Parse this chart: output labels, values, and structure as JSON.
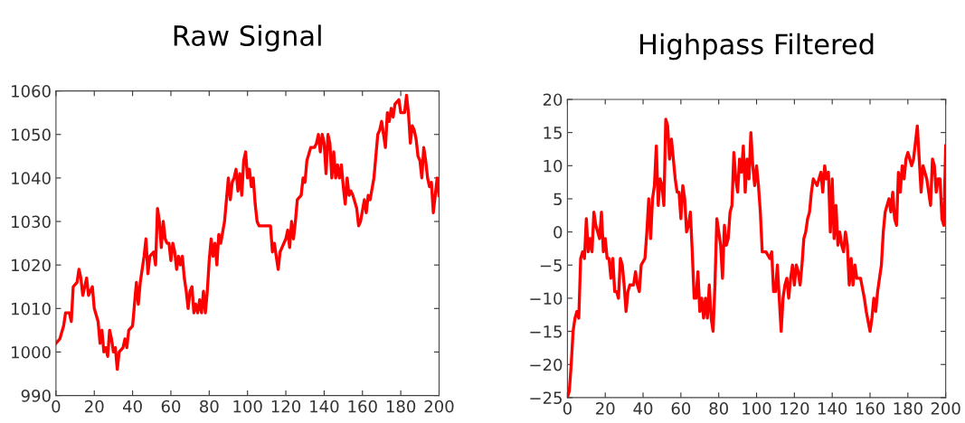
{
  "chart_data": [
    {
      "type": "line",
      "title": "Raw Signal",
      "xlim": [
        0,
        200
      ],
      "xticks": [
        0,
        20,
        40,
        60,
        80,
        100,
        120,
        140,
        160,
        180,
        200
      ],
      "ylim": [
        990,
        1060
      ],
      "yticks": [
        990,
        1000,
        1010,
        1020,
        1030,
        1040,
        1050,
        1060
      ],
      "grid": false,
      "series": [
        {
          "color": "#ff0000",
          "x": [
            0,
            2,
            4,
            5,
            7,
            8,
            9,
            11,
            12,
            13,
            14,
            16,
            17,
            19,
            20,
            22,
            23,
            24,
            25,
            26,
            27,
            28,
            29,
            30,
            31,
            32,
            33,
            35,
            36,
            37,
            38,
            40,
            41,
            42,
            43,
            44,
            46,
            47,
            48,
            49,
            51,
            52,
            53,
            54,
            55,
            56,
            57,
            58,
            59,
            60,
            61,
            62,
            63,
            64,
            65,
            66,
            67,
            68,
            69,
            70,
            71,
            72,
            73,
            74,
            75,
            76,
            77,
            78,
            79,
            80,
            81,
            82,
            83,
            84,
            85,
            86,
            88,
            90,
            91,
            92,
            93,
            94,
            95,
            96,
            97,
            98,
            99,
            100,
            101,
            102,
            103,
            104,
            105,
            106,
            108,
            110,
            112,
            113,
            114,
            115,
            116,
            117,
            118,
            120,
            121,
            122,
            123,
            124,
            125,
            126,
            128,
            129,
            130,
            131,
            133,
            135,
            136,
            137,
            138,
            139,
            140,
            141,
            142,
            143,
            144,
            145,
            146,
            147,
            148,
            149,
            150,
            151,
            152,
            153,
            154,
            155,
            157,
            158,
            159,
            161,
            162,
            163,
            164,
            166,
            167,
            168,
            169,
            170,
            171,
            172,
            173,
            174,
            175,
            176,
            177,
            179,
            180,
            182,
            183,
            184,
            185,
            186,
            187,
            188,
            189,
            190,
            191,
            192,
            193,
            194,
            195,
            196,
            197,
            198,
            199,
            200
          ],
          "values": [
            1002,
            1003,
            1006,
            1009,
            1009,
            1007,
            1015,
            1016,
            1019,
            1017,
            1013,
            1017,
            1013,
            1015,
            1010,
            1007,
            1002,
            1005,
            1000,
            1001,
            999,
            1005,
            1003,
            1000,
            1001,
            996,
            1000,
            1001,
            1003,
            1001,
            1005,
            1006,
            1011,
            1016,
            1011,
            1016,
            1022,
            1026,
            1018,
            1022,
            1023,
            1020,
            1033,
            1030,
            1024,
            1030,
            1026,
            1025,
            1025,
            1021,
            1025,
            1023,
            1019,
            1022,
            1020,
            1022,
            1017,
            1014,
            1010,
            1014,
            1015,
            1009,
            1011,
            1009,
            1012,
            1009,
            1014,
            1009,
            1014,
            1021,
            1026,
            1022,
            1025,
            1020,
            1027,
            1025,
            1030,
            1040,
            1035,
            1039,
            1040,
            1042,
            1037,
            1041,
            1036,
            1044,
            1046,
            1040,
            1042,
            1038,
            1040,
            1034,
            1030,
            1029,
            1029,
            1029,
            1029,
            1023,
            1025,
            1022,
            1019,
            1023,
            1024,
            1026,
            1028,
            1024,
            1030,
            1026,
            1030,
            1035,
            1036,
            1040,
            1039,
            1044,
            1047,
            1047,
            1048,
            1050,
            1046,
            1050,
            1048,
            1041,
            1050,
            1048,
            1040,
            1046,
            1040,
            1043,
            1040,
            1043,
            1038,
            1034,
            1040,
            1036,
            1037,
            1036,
            1033,
            1029,
            1030,
            1035,
            1032,
            1036,
            1035,
            1040,
            1045,
            1050,
            1051,
            1053,
            1050,
            1047,
            1055,
            1053,
            1056,
            1054,
            1057,
            1058,
            1055,
            1055,
            1059,
            1055,
            1048,
            1052,
            1051,
            1049,
            1045,
            1044,
            1040,
            1047,
            1044,
            1040,
            1038,
            1039,
            1032,
            1036,
            1040,
            1036
          ]
        }
      ]
    },
    {
      "type": "line",
      "title": "Highpass Filtered",
      "xlim": [
        0,
        200
      ],
      "xticks": [
        0,
        20,
        40,
        60,
        80,
        100,
        120,
        140,
        160,
        180,
        200
      ],
      "ylim": [
        -25,
        20
      ],
      "yticks": [
        -25,
        -20,
        -15,
        -10,
        -5,
        0,
        5,
        10,
        15,
        20
      ],
      "grid": false,
      "series": [
        {
          "color": "#ff0000",
          "x": [
            0,
            1,
            2,
            3,
            4,
            5,
            6,
            7,
            8,
            9,
            10,
            11,
            12,
            13,
            14,
            15,
            16,
            17,
            18,
            19,
            20,
            21,
            22,
            23,
            24,
            25,
            26,
            27,
            28,
            29,
            30,
            31,
            32,
            33,
            35,
            36,
            37,
            38,
            39,
            41,
            42,
            43,
            44,
            45,
            46,
            47,
            48,
            49,
            50,
            51,
            52,
            53,
            54,
            55,
            56,
            57,
            58,
            59,
            60,
            61,
            62,
            63,
            64,
            65,
            66,
            67,
            68,
            69,
            70,
            71,
            72,
            73,
            74,
            75,
            76,
            77,
            78,
            79,
            80,
            81,
            82,
            83,
            84,
            85,
            86,
            87,
            88,
            89,
            90,
            91,
            92,
            93,
            94,
            95,
            96,
            97,
            98,
            99,
            100,
            101,
            102,
            103,
            105,
            107,
            108,
            109,
            110,
            111,
            112,
            113,
            114,
            115,
            116,
            117,
            118,
            119,
            120,
            121,
            122,
            123,
            124,
            125,
            126,
            127,
            128,
            129,
            130,
            132,
            133,
            134,
            135,
            136,
            137,
            138,
            139,
            140,
            141,
            142,
            143,
            144,
            145,
            146,
            147,
            148,
            149,
            150,
            151,
            152,
            153,
            155,
            157,
            158,
            160,
            161,
            162,
            163,
            164,
            166,
            167,
            168,
            169,
            170,
            171,
            172,
            173,
            174,
            175,
            176,
            177,
            178,
            179,
            180,
            181,
            182,
            183,
            185,
            186,
            187,
            188,
            189,
            190,
            191,
            192,
            193,
            194,
            195,
            196,
            197,
            198,
            199,
            200
          ],
          "values": [
            -25,
            -24,
            -20,
            -15,
            -13,
            -12,
            -13,
            -4,
            -3,
            -4,
            2,
            -3,
            -1,
            -3,
            3,
            1,
            0,
            -1,
            3,
            -3,
            -1,
            -4,
            -4,
            -7,
            -4,
            -9,
            -9,
            -10,
            -4,
            -5,
            -8,
            -12,
            -9,
            -8,
            -8,
            -6,
            -8,
            -9,
            -5,
            -4,
            0,
            5,
            -1,
            5,
            7,
            13,
            4,
            8,
            7,
            4,
            17,
            16,
            11,
            14,
            11,
            8,
            6,
            6,
            2,
            7,
            5,
            0,
            1,
            3,
            -3,
            -10,
            -10,
            -6,
            -12,
            -10,
            -13,
            -10,
            -13,
            -8,
            -13,
            -15,
            -8,
            2,
            0,
            -2,
            -7,
            1,
            -2,
            -1,
            3,
            4,
            12,
            8,
            6,
            11,
            9,
            13,
            6,
            11,
            8,
            15,
            10,
            7,
            10,
            7,
            3,
            -3,
            -3,
            -4,
            -3,
            -9,
            -9,
            -5,
            -10,
            -15,
            -10,
            -8,
            -7,
            -10,
            -7,
            -5,
            -8,
            -5,
            -6,
            -8,
            -5,
            -1,
            0,
            2,
            3,
            6,
            8,
            7,
            8,
            9,
            6,
            10,
            8,
            9,
            0,
            8,
            -1,
            4,
            -2,
            0,
            -2,
            -3,
            0,
            -2,
            -8,
            -4,
            -8,
            -5,
            -7,
            -7,
            -10,
            -12,
            -15,
            -13,
            -10,
            -12,
            -9,
            -5,
            0,
            3,
            4,
            5,
            3,
            6,
            2,
            1,
            9,
            6,
            10,
            8,
            11,
            12,
            11,
            10,
            11,
            16,
            11,
            6,
            10,
            9,
            8,
            6,
            4,
            11,
            10,
            6,
            8,
            8,
            2,
            1,
            13
          ]
        }
      ]
    }
  ]
}
